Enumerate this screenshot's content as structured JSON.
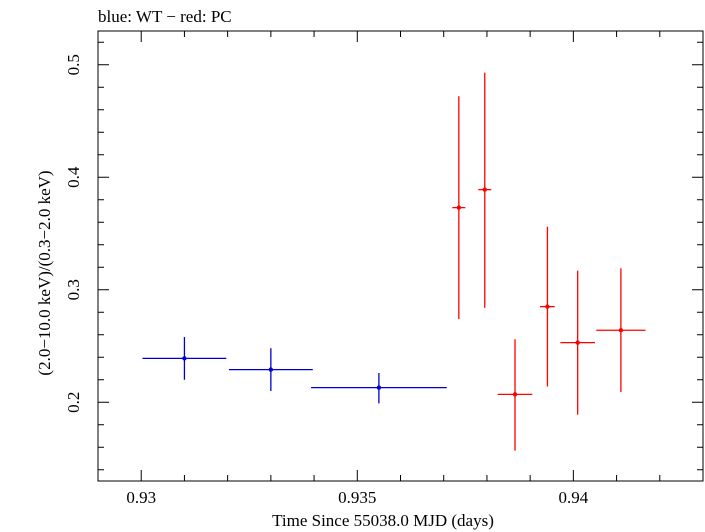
{
  "chart_data": {
    "type": "scatter",
    "title": "blue: WT − red: PC",
    "xlabel": "Time Since 55038.0 MJD (days)",
    "ylabel": "(2.0−10.0 keV)/(0.3−2.0 keV)",
    "xlim": [
      0.929,
      0.943
    ],
    "ylim": [
      0.13,
      0.53
    ],
    "xticks": [
      0.93,
      0.935,
      0.94
    ],
    "xtick_labels": [
      "0.93",
      "0.935",
      "0.94"
    ],
    "yticks": [
      0.2,
      0.3,
      0.4,
      0.5
    ],
    "ytick_labels": [
      "0.2",
      "0.3",
      "0.4",
      "0.5"
    ],
    "series": [
      {
        "name": "WT",
        "color": "#0000cc",
        "points": [
          {
            "x": 0.931,
            "xerr": 0.00097,
            "y": 0.239,
            "yerr_up": 0.019,
            "yerr_down": 0.019
          },
          {
            "x": 0.933,
            "xerr": 0.00097,
            "y": 0.229,
            "yerr_up": 0.019,
            "yerr_down": 0.019
          },
          {
            "x": 0.9355,
            "xerr": 0.00157,
            "y": 0.213,
            "yerr_up": 0.013,
            "yerr_down": 0.014
          }
        ]
      },
      {
        "name": "PC",
        "color": "#ff0000",
        "points": [
          {
            "x": 0.93735,
            "xerr": 0.00015,
            "y": 0.373,
            "yerr_up": 0.099,
            "yerr_down": 0.099
          },
          {
            "x": 0.93795,
            "xerr": 0.00015,
            "y": 0.389,
            "yerr_up": 0.104,
            "yerr_down": 0.105
          },
          {
            "x": 0.93865,
            "xerr": 0.0004,
            "y": 0.207,
            "yerr_up": 0.049,
            "yerr_down": 0.05
          },
          {
            "x": 0.9394,
            "xerr": 0.00017,
            "y": 0.285,
            "yerr_up": 0.071,
            "yerr_down": 0.071
          },
          {
            "x": 0.9401,
            "xerr": 0.0004,
            "y": 0.253,
            "yerr_up": 0.064,
            "yerr_down": 0.064
          },
          {
            "x": 0.9411,
            "xerr": 0.00057,
            "y": 0.264,
            "yerr_up": 0.055,
            "yerr_down": 0.055
          }
        ]
      }
    ]
  }
}
